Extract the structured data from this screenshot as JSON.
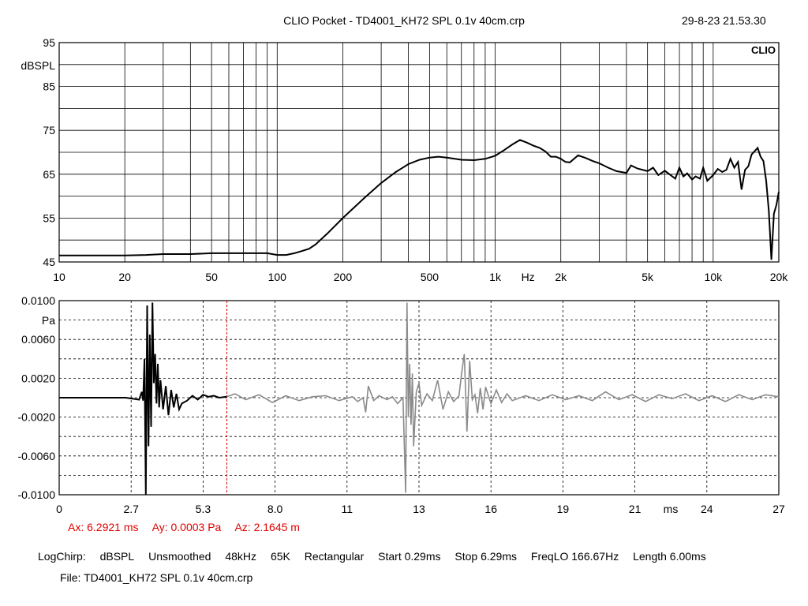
{
  "header": {
    "title": "CLIO Pocket - TD4001_KH72 SPL 0.1v 40cm.crp",
    "datetime": "29-8-23 21.53.30",
    "logo_text": "CLIO"
  },
  "cursor_readout": {
    "ax": "Ax: 6.2921 ms",
    "ay": "Ay: 0.0003 Pa",
    "az": "Az: 2.1645 m"
  },
  "settings_bar": [
    "LogChirp:",
    "dBSPL",
    "Unsmoothed",
    "48kHz",
    "65K",
    "Rectangular",
    "Start 0.29ms",
    "Stop 6.29ms",
    "FreqLO 166.67Hz",
    "Length 6.00ms"
  ],
  "file_line": "File: TD4001_KH72 SPL 0.1v 40cm.crp",
  "colors": {
    "trace": "#000000",
    "trace_gray": "#8a8a8a",
    "cursor": "#e00000",
    "grid": "#000000"
  },
  "chart_data": [
    {
      "type": "line",
      "name": "frequency-response",
      "ylabel": "dBSPL",
      "xlabel": "Hz",
      "xscale": "log",
      "xlim": [
        10,
        20000
      ],
      "ylim": [
        45,
        95
      ],
      "y_ticks": [
        "95",
        "85",
        "75",
        "65",
        "55",
        "45"
      ],
      "x_ticks": [
        "10",
        "20",
        "50",
        "100",
        "200",
        "500",
        "1k",
        "2k",
        "5k",
        "10k",
        "20k"
      ],
      "grid": true,
      "series": [
        {
          "x": [
            10,
            15,
            20,
            25,
            30,
            40,
            50,
            60,
            70,
            80,
            90,
            100,
            110,
            120,
            130,
            140,
            150,
            170,
            200,
            250,
            300,
            350,
            400,
            450,
            500,
            550,
            600,
            700,
            800,
            900,
            1000,
            1100,
            1200,
            1300,
            1400,
            1500,
            1600,
            1700,
            1800,
            1900,
            2000,
            2100,
            2200,
            2400,
            2600,
            2800,
            3000,
            3300,
            3600,
            4000,
            4200,
            4500,
            5000,
            5300,
            5600,
            6000,
            6300,
            6700,
            7000,
            7300,
            7600,
            8000,
            8300,
            8700,
            9000,
            9400,
            10000,
            10500,
            11000,
            11500,
            12000,
            12500,
            13000,
            13500,
            14000,
            14500,
            15000,
            16000,
            16500,
            17000,
            17500,
            18000,
            18500,
            19000,
            19500,
            20000
          ],
          "y": [
            46.5,
            46.5,
            46.5,
            46.6,
            46.8,
            46.8,
            47.0,
            47.0,
            47.0,
            47.0,
            47.0,
            46.6,
            46.6,
            47.0,
            47.5,
            48.0,
            49.0,
            51.5,
            55.0,
            59.5,
            63.0,
            65.5,
            67.3,
            68.3,
            68.8,
            69.0,
            68.8,
            68.3,
            68.2,
            68.5,
            69.2,
            70.5,
            71.8,
            72.8,
            72.2,
            71.5,
            71.0,
            70.2,
            69.0,
            69.0,
            68.5,
            67.8,
            67.7,
            69.3,
            68.7,
            68.0,
            67.5,
            66.5,
            65.7,
            65.3,
            67.0,
            66.3,
            65.7,
            66.5,
            64.8,
            65.8,
            65.0,
            64.0,
            66.5,
            64.5,
            65.2,
            63.8,
            64.5,
            64.0,
            66.5,
            63.5,
            64.8,
            66.2,
            65.5,
            66.0,
            68.5,
            66.5,
            67.8,
            61.5,
            66.0,
            66.8,
            69.5,
            71.0,
            69.0,
            68.0,
            63.5,
            56.5,
            45.5,
            56.0,
            58.0,
            61.0
          ]
        }
      ]
    },
    {
      "type": "line",
      "name": "impulse-response",
      "ylabel": "Pa",
      "xlabel": "ms",
      "xlim": [
        0,
        27
      ],
      "ylim": [
        -0.01,
        0.01
      ],
      "y_ticks": [
        "0.0100",
        "0.0060",
        "0.0020",
        "-0.0020",
        "-0.0060",
        "-0.0100"
      ],
      "x_ticks": [
        "0",
        "2.7",
        "5.3",
        "8.0",
        "11",
        "13",
        "16",
        "19",
        "21",
        "24",
        "27"
      ],
      "grid": true,
      "cursor_x": 6.2921,
      "series": [
        {
          "name": "window",
          "x": [
            0,
            2.5,
            3.0,
            3.1,
            3.15,
            3.2,
            3.25,
            3.3,
            3.35,
            3.4,
            3.45,
            3.5,
            3.55,
            3.6,
            3.65,
            3.7,
            3.75,
            3.8,
            3.9,
            4.0,
            4.1,
            4.2,
            4.3,
            4.4,
            4.5,
            4.6,
            4.8,
            5.0,
            5.2,
            5.4,
            5.6,
            5.8,
            6.0,
            6.29
          ],
          "y": [
            0,
            0,
            -0.0002,
            0.0006,
            -0.0003,
            0.004,
            -0.01,
            0.0095,
            -0.005,
            0.0065,
            -0.003,
            0.0098,
            0.0015,
            0.0045,
            -0.0006,
            0.0035,
            -0.001,
            0.0018,
            -0.0012,
            0.0012,
            -0.0018,
            0.0008,
            -0.001,
            0.0004,
            -0.0012,
            -0.0006,
            -0.0003,
            0.0002,
            -0.0002,
            0.0003,
            0.0001,
            0.0002,
            0.0,
            0.0001
          ]
        },
        {
          "name": "remainder",
          "x": [
            6.29,
            6.6,
            7.0,
            7.5,
            8.0,
            8.5,
            9.0,
            9.5,
            10.0,
            10.5,
            11.0,
            11.2,
            11.4,
            11.5,
            11.6,
            11.8,
            12.0,
            12.3,
            12.5,
            12.7,
            12.9,
            13.0,
            13.05,
            13.1,
            13.15,
            13.2,
            13.25,
            13.3,
            13.4,
            13.5,
            13.6,
            13.8,
            14.0,
            14.2,
            14.4,
            14.6,
            14.8,
            15.0,
            15.1,
            15.2,
            15.3,
            15.4,
            15.5,
            15.6,
            15.7,
            15.8,
            15.9,
            16.0,
            16.2,
            16.4,
            16.6,
            16.8,
            17.0,
            17.5,
            18.0,
            18.5,
            19.0,
            19.5,
            20.0,
            20.5,
            21.0,
            21.5,
            22.0,
            22.5,
            23.0,
            23.5,
            24.0,
            24.5,
            25.0,
            25.5,
            26.0,
            26.5,
            27.0
          ],
          "y": [
            0.0001,
            0.0004,
            -0.0002,
            0.0003,
            -0.0005,
            0.0002,
            -0.0003,
            0.0001,
            0.0002,
            -0.0003,
            0.0001,
            -0.0004,
            0.0,
            -0.0015,
            0.0012,
            -0.0003,
            0.0002,
            -0.0002,
            0.0001,
            -0.0006,
            0.0,
            -0.0098,
            0.0098,
            -0.002,
            0.0035,
            -0.0028,
            0.0025,
            -0.005,
            0.0006,
            0.0015,
            -0.0008,
            0.0004,
            -0.0003,
            0.0018,
            -0.0012,
            0.0006,
            -0.0004,
            0.0002,
            0.0025,
            0.0045,
            -0.0035,
            0.0038,
            -0.0002,
            0.0003,
            -0.0016,
            0.001,
            -0.0012,
            0.0011,
            -0.0006,
            0.0008,
            -0.0005,
            0.0004,
            -0.0003,
            0.0002,
            -0.0003,
            0.0003,
            -0.0002,
            0.0002,
            -0.0003,
            0.0006,
            -0.0002,
            0.0003,
            -0.0004,
            0.0003,
            -0.0001,
            0.0004,
            -0.0003,
            0.0002,
            -0.0004,
            0.0003,
            -0.0002,
            0.0003,
            0.0001
          ]
        }
      ]
    }
  ]
}
